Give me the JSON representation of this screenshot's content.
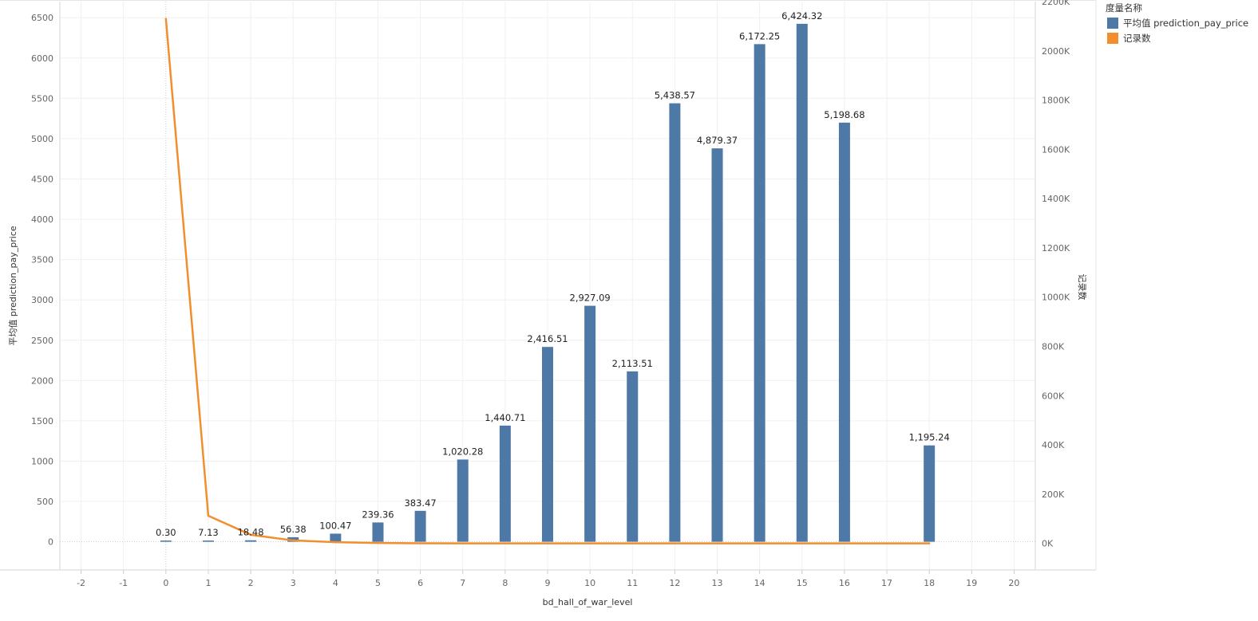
{
  "chart_data": {
    "type": "bar",
    "x_axis": {
      "label": "bd_hall_of_war_level",
      "range": [
        -2.5,
        20.5
      ],
      "ticks": [
        -2,
        -1,
        0,
        1,
        2,
        3,
        4,
        5,
        6,
        7,
        8,
        9,
        10,
        11,
        12,
        13,
        14,
        15,
        16,
        17,
        18,
        19,
        20
      ]
    },
    "y_axis_left": {
      "label": "平均值 prediction_pay_price",
      "range": [
        -350,
        6700
      ],
      "ticks": [
        0,
        500,
        1000,
        1500,
        2000,
        2500,
        3000,
        3500,
        4000,
        4500,
        5000,
        5500,
        6000,
        6500
      ],
      "tick_labels": [
        "0",
        "500",
        "1000",
        "1500",
        "2000",
        "2500",
        "3000",
        "3500",
        "4000",
        "4500",
        "5000",
        "5500",
        "6000",
        "6500"
      ]
    },
    "y_axis_right": {
      "label": "记录数",
      "range": [
        -108000,
        2200000
      ],
      "ticks": [
        0,
        200000,
        400000,
        600000,
        800000,
        1000000,
        1200000,
        1400000,
        1600000,
        1800000,
        2000000,
        2200000
      ],
      "tick_labels": [
        "0K",
        "200K",
        "400K",
        "600K",
        "800K",
        "1000K",
        "1200K",
        "1400K",
        "1600K",
        "1800K",
        "2000K",
        "2200K"
      ]
    },
    "series": [
      {
        "name": "平均值 prediction_pay_price",
        "type": "bar",
        "axis": "left",
        "color": "#4e79a7",
        "x": [
          0,
          1,
          2,
          3,
          4,
          5,
          6,
          7,
          8,
          9,
          10,
          11,
          12,
          13,
          14,
          15,
          16,
          18
        ],
        "values": [
          0.3,
          7.13,
          18.48,
          56.38,
          100.47,
          239.36,
          383.47,
          1020.28,
          1440.71,
          2416.51,
          2927.09,
          2113.51,
          5438.57,
          4879.37,
          6172.25,
          6424.32,
          5198.68,
          1195.24
        ],
        "labels": [
          "0.30",
          "7.13",
          "18.48",
          "56.38",
          "100.47",
          "239.36",
          "383.47",
          "1,020.28",
          "1,440.71",
          "2,416.51",
          "2,927.09",
          "2,113.51",
          "5,438.57",
          "4,879.37",
          "6,172.25",
          "6,424.32",
          "5,198.68",
          "1,195.24"
        ]
      },
      {
        "name": "记录数",
        "type": "line",
        "axis": "right",
        "color": "#f28e2b",
        "x": [
          0,
          1,
          2,
          3,
          4,
          5,
          6,
          7,
          8,
          9,
          10,
          11,
          12,
          13,
          14,
          15,
          16,
          18
        ],
        "values": [
          2130000,
          112000,
          35000,
          12000,
          5000,
          1500,
          500,
          200,
          100,
          60,
          40,
          30,
          20,
          20,
          15,
          10,
          8,
          5
        ]
      }
    ],
    "legend": {
      "title": "度量名称",
      "position": "top-right"
    },
    "grid": true
  }
}
